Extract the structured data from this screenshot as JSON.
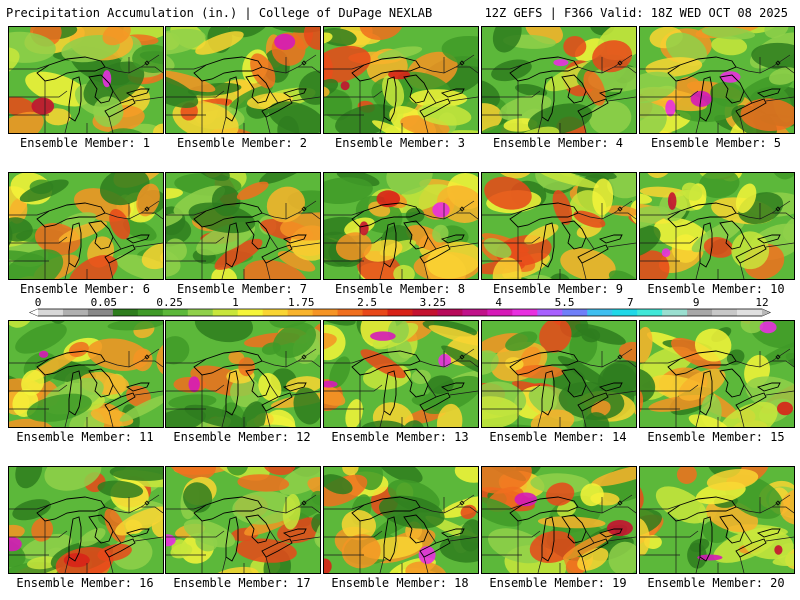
{
  "header": {
    "title_left": "Precipitation Accumulation (in.) | College of DuPage NEXLAB",
    "title_right": "12Z GEFS | F366 Valid: 18Z WED OCT 08 2025"
  },
  "colors": {
    "scale": [
      "#ffffff",
      "#d8d8d8",
      "#b0b0b0",
      "#888888",
      "#2e7d1e",
      "#3f9a28",
      "#5cb83a",
      "#8fd04a",
      "#c8e63c",
      "#f5f53a",
      "#f9d533",
      "#f8b32c",
      "#f59425",
      "#f06f1f",
      "#e8481a",
      "#d82218",
      "#c41230",
      "#b80a5a",
      "#c0128a",
      "#d61ab8",
      "#e830e0",
      "#a860ff",
      "#6f7ff8",
      "#3fbff0",
      "#20d8e8",
      "#40e8d8",
      "#9adfd0",
      "#a8a8a8",
      "#c8c8c8",
      "#e0e0e0"
    ]
  },
  "colorbar": {
    "ticks": [
      "0",
      "0.05",
      "0.25",
      "1",
      "1.75",
      "2.5",
      "3.25",
      "4",
      "5.5",
      "7",
      "9",
      "12"
    ]
  },
  "members": [
    {
      "label": "Ensemble Member: 1",
      "seed": 1
    },
    {
      "label": "Ensemble Member: 2",
      "seed": 2
    },
    {
      "label": "Ensemble Member: 3",
      "seed": 3
    },
    {
      "label": "Ensemble Member: 4",
      "seed": 4
    },
    {
      "label": "Ensemble Member: 5",
      "seed": 5
    },
    {
      "label": "Ensemble Member: 6",
      "seed": 6
    },
    {
      "label": "Ensemble Member: 7",
      "seed": 7
    },
    {
      "label": "Ensemble Member: 8",
      "seed": 8
    },
    {
      "label": "Ensemble Member: 9",
      "seed": 9
    },
    {
      "label": "Ensemble Member: 10",
      "seed": 10
    },
    {
      "label": "Ensemble Member: 11",
      "seed": 11
    },
    {
      "label": "Ensemble Member: 12",
      "seed": 12
    },
    {
      "label": "Ensemble Member: 13",
      "seed": 13
    },
    {
      "label": "Ensemble Member: 14",
      "seed": 14
    },
    {
      "label": "Ensemble Member: 15",
      "seed": 15
    },
    {
      "label": "Ensemble Member: 16",
      "seed": 16
    },
    {
      "label": "Ensemble Member: 17",
      "seed": 17
    },
    {
      "label": "Ensemble Member: 18",
      "seed": 18
    },
    {
      "label": "Ensemble Member: 19",
      "seed": 19
    },
    {
      "label": "Ensemble Member: 20",
      "seed": 20
    }
  ]
}
